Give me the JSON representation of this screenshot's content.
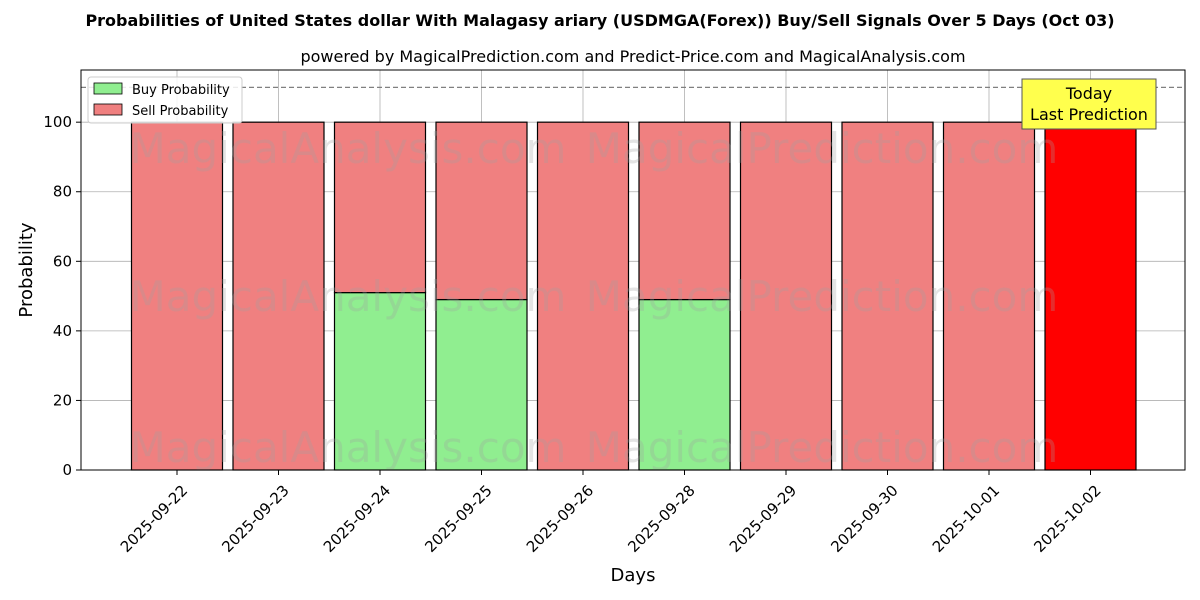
{
  "chart_data": {
    "type": "bar",
    "stacked": true,
    "title": "Probabilities of United States dollar With Malagasy ariary (USDMGA(Forex)) Buy/Sell Signals Over 5 Days (Oct 03)",
    "subtitle": "powered by MagicalPrediction.com and Predict-Price.com and MagicalAnalysis.com",
    "xlabel": "Days",
    "ylabel": "Probability",
    "ylim": [
      0,
      115
    ],
    "yticks": [
      0,
      20,
      40,
      60,
      80,
      100
    ],
    "grid": true,
    "legend_placement": "top-left",
    "categories": [
      "2025-09-22",
      "2025-09-23",
      "2025-09-24",
      "2025-09-25",
      "2025-09-26",
      "2025-09-28",
      "2025-09-29",
      "2025-09-30",
      "2025-10-01",
      "2025-10-02"
    ],
    "series": [
      {
        "name": "Buy Probability",
        "color": "#90ee90",
        "values": [
          0,
          0,
          51,
          49,
          0,
          49,
          0,
          0,
          0,
          0
        ]
      },
      {
        "name": "Sell Probability",
        "color": "#f08080",
        "values": [
          100,
          100,
          49,
          51,
          100,
          51,
          100,
          100,
          100,
          100
        ]
      }
    ],
    "highlight": {
      "index": 9,
      "color": "#ff0000"
    },
    "reference_line": {
      "y": 110,
      "style": "dashed",
      "color": "#808080"
    },
    "annotation": {
      "lines": [
        "Today",
        "Last Prediction"
      ],
      "background": "#ffff4d"
    },
    "watermarks": [
      "MagicalAnalysis.com",
      "MagicalPrediction.com"
    ]
  }
}
